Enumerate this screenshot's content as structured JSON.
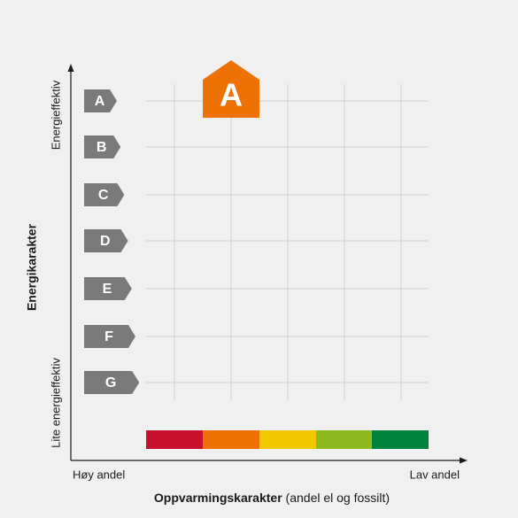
{
  "y_axis": {
    "title": "Energikarakter",
    "top_label": "Energieffektiv",
    "bottom_label": "Lite energieffektiv"
  },
  "x_axis": {
    "title_bold": "Oppvarmingskarakter",
    "title_rest": "(andel el og fossilt)",
    "left_label": "Høy andel",
    "right_label": "Lav andel"
  },
  "grades": [
    "A",
    "B",
    "C",
    "D",
    "E",
    "F",
    "G"
  ],
  "selected": "A"
}
